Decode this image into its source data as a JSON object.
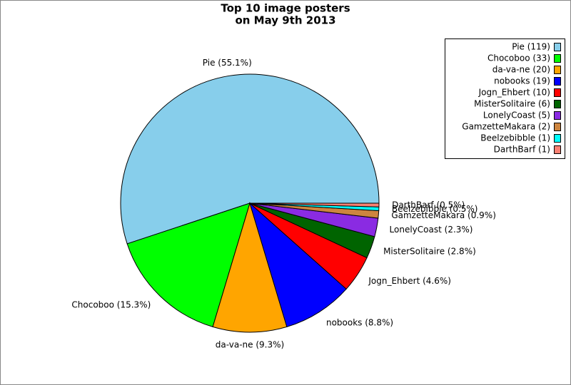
{
  "chart_data": {
    "type": "pie",
    "title": [
      "Top 10 image posters",
      "on May 9th 2013"
    ],
    "labels": [
      "Pie (119)",
      "Chocoboo (33)",
      "da-va-ne (20)",
      "nobooks (19)",
      "Jogn_Ehbert (10)",
      "MisterSolitaire (6)",
      "LonelyCoast (5)",
      "GamzetteMakara (2)",
      "Beelzebibble (1)",
      "DarthBarf (1)"
    ],
    "values": [
      119,
      33,
      20,
      19,
      10,
      6,
      5,
      2,
      1,
      1
    ],
    "value_labels": [
      "Pie (55.1%)",
      "Chocoboo (15.3%)",
      "da-va-ne (9.3%)",
      "nobooks (8.8%)",
      "Jogn_Ehbert (4.6%)",
      "MisterSolitaire (2.8%)",
      "LonelyCoast (2.3%)",
      "GamzetteMakara (0.9%)",
      "Beelzebibble (0.5%)",
      "DarthBarf (0.5%)"
    ],
    "colors": [
      "#87ceeb",
      "#00ff00",
      "#ffa500",
      "#0000ff",
      "#ff0000",
      "#006400",
      "#8a2be2",
      "#cd853f",
      "#00ffff",
      "#fa8072"
    ],
    "legend": "upper right"
  }
}
